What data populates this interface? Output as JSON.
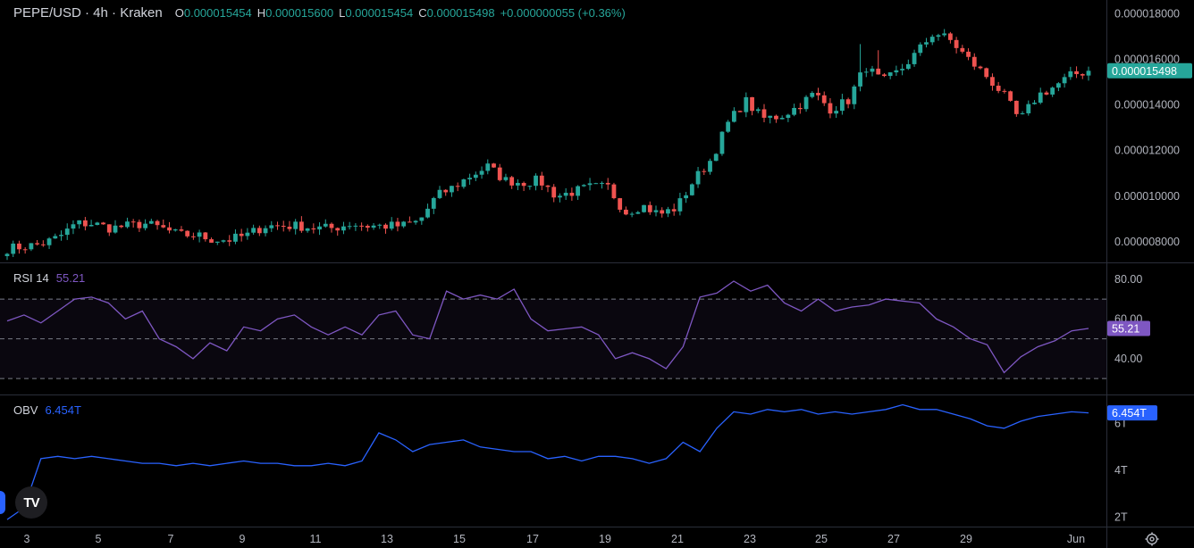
{
  "legend": {
    "symbol": "PEPE/USD · 4h · Kraken",
    "open_label": "O",
    "open": "0.000015454",
    "high_label": "H",
    "high": "0.000015600",
    "low_label": "L",
    "low": "0.000015454",
    "close_label": "C",
    "close": "0.000015498",
    "change": "+0.000000055 (+0.36%)"
  },
  "price_axis": {
    "ticks": [
      "0.000018000",
      "0.000016000",
      "0.000014000",
      "0.000012000",
      "0.000010000",
      "0.000008000"
    ],
    "last_price": "0.000015498"
  },
  "rsi": {
    "name": "RSI 14",
    "value": "55.21",
    "ticks": [
      "80.00",
      "60.00",
      "40.00"
    ]
  },
  "obv": {
    "name": "OBV",
    "value": "6.454T",
    "ticks": [
      "6T",
      "4T",
      "2T"
    ]
  },
  "time_axis": [
    "3",
    "5",
    "7",
    "9",
    "11",
    "13",
    "15",
    "17",
    "19",
    "21",
    "23",
    "25",
    "27",
    "29",
    "Jun"
  ],
  "logo_text": "TV",
  "colors": {
    "up": "#26a69a",
    "down": "#ef5350",
    "rsi": "#7e57c2",
    "obv": "#2962ff",
    "bg": "#000000"
  },
  "chart_data": [
    {
      "type": "candlestick",
      "title": "PEPE/USD · 4h · Kraken",
      "ylim": [
        7.1e-06,
        1.86e-05
      ],
      "x_ticks": [
        "3",
        "5",
        "7",
        "9",
        "11",
        "13",
        "15",
        "17",
        "19",
        "21",
        "23",
        "25",
        "27",
        "29",
        "Jun"
      ],
      "close_anchors": [
        7.7e-06,
        7.8e-06,
        7.9e-06,
        8.2e-06,
        8.8e-06,
        8.8e-06,
        8.6e-06,
        8.7e-06,
        8.8e-06,
        8.6e-06,
        8.3e-06,
        8.3e-06,
        8.1e-06,
        8.1e-06,
        8.3e-06,
        8.7e-06,
        8.7e-06,
        8.7e-06,
        8.6e-06,
        8.6e-06,
        8.8e-06,
        8.7e-06,
        8.7e-06,
        8.7e-06,
        8.9e-06,
        1e-05,
        1.04e-05,
        1.09e-05,
        1.13e-05,
        1.07e-05,
        1.06e-05,
        1.07e-05,
        1e-05,
        1.02e-05,
        1.04e-05,
        1.04e-05,
        9.3e-06,
        9.6e-06,
        9.2e-06,
        9.5e-06,
        1.07e-05,
        1.16e-05,
        1.32e-05,
        1.42e-05,
        1.34e-05,
        1.35e-05,
        1.39e-05,
        1.45e-05,
        1.38e-05,
        1.42e-05,
        1.57e-05,
        1.5e-05,
        1.55e-05,
        1.63e-05,
        1.72e-05,
        1.68e-05,
        1.6e-05,
        1.53e-05,
        1.45e-05,
        1.33e-05,
        1.44e-05,
        1.48e-05,
        1.53e-05,
        1.55e-05
      ]
    },
    {
      "type": "line",
      "title": "RSI 14",
      "ylim": [
        22,
        88
      ],
      "bands": [
        70,
        50,
        30
      ],
      "values": [
        59,
        62,
        58,
        64,
        70,
        71,
        68,
        60,
        64,
        50,
        46,
        40,
        48,
        44,
        56,
        54,
        60,
        62,
        56,
        52,
        56,
        52,
        62,
        64,
        52,
        50,
        74,
        70,
        72,
        70,
        75,
        60,
        54,
        55,
        56,
        52,
        40,
        43,
        40,
        35,
        46,
        71,
        73,
        79,
        74,
        77,
        68,
        64,
        70,
        64,
        66,
        67,
        70,
        69,
        68,
        60,
        56,
        50,
        47,
        33,
        41,
        46,
        49,
        54,
        55.21
      ]
    },
    {
      "type": "line",
      "title": "OBV",
      "ylim": [
        1.6,
        7.2
      ],
      "values": [
        1.9,
        2.4,
        4.5,
        4.6,
        4.5,
        4.6,
        4.5,
        4.4,
        4.3,
        4.3,
        4.2,
        4.3,
        4.2,
        4.3,
        4.4,
        4.3,
        4.3,
        4.2,
        4.2,
        4.3,
        4.2,
        4.4,
        5.6,
        5.3,
        4.8,
        5.1,
        5.2,
        5.3,
        5.0,
        4.9,
        4.8,
        4.8,
        4.5,
        4.6,
        4.4,
        4.6,
        4.6,
        4.5,
        4.3,
        4.5,
        5.2,
        4.8,
        5.8,
        6.5,
        6.4,
        6.6,
        6.5,
        6.6,
        6.4,
        6.5,
        6.4,
        6.5,
        6.6,
        6.8,
        6.6,
        6.6,
        6.4,
        6.2,
        5.9,
        5.8,
        6.1,
        6.3,
        6.4,
        6.5,
        6.454
      ]
    }
  ]
}
